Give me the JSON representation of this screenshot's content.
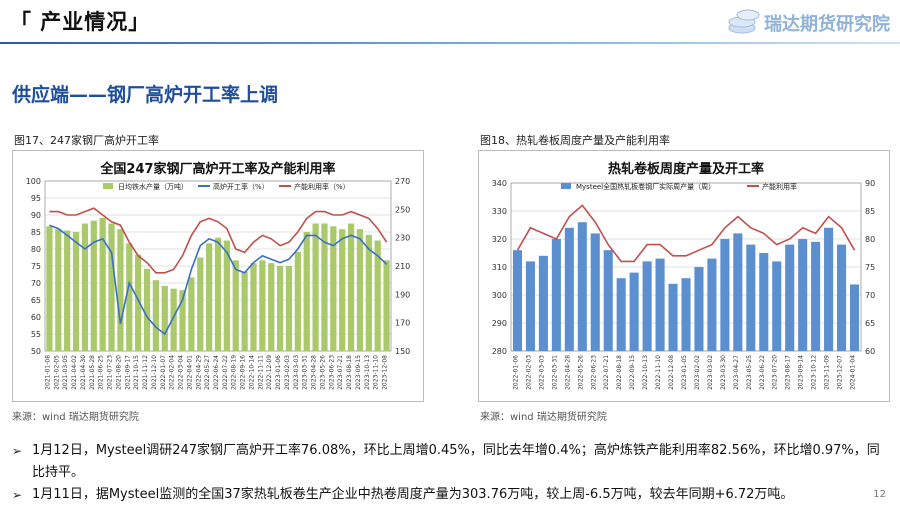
{
  "header": {
    "title": "「 产业情况」",
    "logo_text": "瑞达期货研究院"
  },
  "section": {
    "title": "供应端——钢厂高炉开工率上调"
  },
  "figures": {
    "fig17": {
      "caption": "图17、247家钢厂高炉开工率",
      "source": "来源：wind   瑞达期货研究院"
    },
    "fig18": {
      "caption": "图18、热轧卷板周度产量及产能利用率",
      "source": "来源：wind   瑞达期货研究院"
    }
  },
  "bullets": [
    {
      "text": "1月12日，Mysteel调研247家钢厂高炉开工率76.08%，环比上周增0.45%，同比去年增0.4%；高炉炼铁产能利用率82.56%，环比增0.97%，同比持平。"
    },
    {
      "text": "1月11日，据Mysteel监测的全国37家热轧板卷生产企业中热卷周度产量为303.76万吨，较上周-6.5万吨，较去年同期+6.72万吨。"
    }
  ],
  "page_number": "12",
  "colors": {
    "accent": "#1f4e9a",
    "bar_green": "#a9c96a",
    "bar_blue": "#5b8fd0",
    "line_blue": "#3a6fc4",
    "line_red": "#c0504d"
  },
  "chart_data": [
    {
      "type": "bar",
      "title": "全国247家钢厂高炉开工率及产能利用率",
      "legend": [
        "日均铁水产量（万吨）",
        "高炉开工率（%）",
        "产能利用率（%）"
      ],
      "legend_position": "top",
      "grid": true,
      "yleft": {
        "ticks": [
          50,
          55,
          60,
          65,
          70,
          75,
          80,
          85,
          90,
          95,
          100
        ],
        "range": [
          50,
          100
        ]
      },
      "yright": {
        "ticks": [
          150,
          170,
          190,
          210,
          230,
          250,
          270
        ],
        "range": [
          150,
          270
        ]
      },
      "x_tick_labels": [
        "2021-01-08",
        "2021-02-05",
        "2021-03-05",
        "2021-04-02",
        "2021-04-30",
        "2021-05-28",
        "2021-06-25",
        "2021-07-23",
        "2021-08-20",
        "2021-09-17",
        "2021-10-15",
        "2021-11-12",
        "2021-12-10",
        "2022-01-07",
        "2022-02-04",
        "2022-03-04",
        "2022-04-01",
        "2022-04-29",
        "2022-05-27",
        "2022-06-24",
        "2022-07-22",
        "2022-08-19",
        "2022-09-16",
        "2022-10-14",
        "2022-11-11",
        "2022-12-09",
        "2023-01-06",
        "2023-02-03",
        "2023-03-03",
        "2023-03-31",
        "2023-04-28",
        "2023-05-26",
        "2023-06-23",
        "2023-07-21",
        "2023-08-18",
        "2023-09-15",
        "2023-10-13",
        "2023-11-10",
        "2023-12-08"
      ],
      "series": [
        {
          "name": "日均铁水产量（万吨）",
          "axis": "right",
          "kind": "bar",
          "values": [
            238,
            236,
            235,
            234,
            240,
            242,
            244,
            240,
            236,
            226,
            218,
            208,
            200,
            196,
            194,
            193,
            202,
            216,
            226,
            230,
            228,
            214,
            206,
            212,
            214,
            212,
            210,
            210,
            220,
            234,
            240,
            240,
            238,
            236,
            240,
            236,
            232,
            228,
            214
          ]
        },
        {
          "name": "高炉开工率（%）",
          "axis": "left",
          "kind": "line",
          "values": [
            87,
            86,
            84,
            82,
            80,
            82,
            83,
            79,
            58,
            70,
            65,
            60,
            57,
            55,
            60,
            65,
            74,
            81,
            83,
            82,
            79,
            74,
            73,
            76,
            78,
            77,
            76,
            77,
            80,
            84,
            84,
            82,
            81,
            83,
            84,
            83,
            80,
            78,
            75.5
          ]
        },
        {
          "name": "产能利用率（%）",
          "axis": "left",
          "kind": "line",
          "values": [
            91,
            91,
            90,
            90,
            91,
            92,
            90,
            88,
            87,
            82,
            78,
            76,
            73,
            73,
            74,
            78,
            84,
            88,
            89,
            88,
            86,
            80,
            79,
            82,
            84,
            83,
            81,
            82,
            85,
            89,
            91,
            91,
            90,
            90,
            91,
            90,
            89,
            86,
            82
          ]
        }
      ]
    },
    {
      "type": "bar",
      "title": "热轧卷板周度产量及开工率",
      "legend": [
        "Mysteel全国热轧板卷钢厂实际周产量（周）",
        "产能利用率"
      ],
      "legend_position": "top",
      "grid": true,
      "yleft": {
        "ticks": [
          280,
          290,
          300,
          310,
          320,
          330,
          340
        ],
        "range": [
          280,
          340
        ]
      },
      "yright": {
        "ticks": [
          60,
          65,
          70,
          75,
          80,
          85,
          90
        ],
        "range": [
          60,
          90
        ]
      },
      "x_tick_labels": [
        "2022-01-06",
        "2022-02-03",
        "2022-03-03",
        "2022-03-31",
        "2022-04-28",
        "2022-05-26",
        "2022-06-23",
        "2022-07-21",
        "2022-08-18",
        "2022-09-15",
        "2022-10-13",
        "2022-11-10",
        "2022-12-08",
        "2023-01-05",
        "2023-02-02",
        "2023-03-02",
        "2023-03-30",
        "2023-04-27",
        "2023-05-25",
        "2023-06-22",
        "2023-07-20",
        "2023-08-17",
        "2023-09-14",
        "2023-10-12",
        "2023-11-09",
        "2023-12-07",
        "2024-01-04"
      ],
      "series": [
        {
          "name": "Mysteel全国热轧板卷钢厂实际周产量（周）",
          "axis": "left",
          "kind": "bar",
          "values": [
            316,
            312,
            314,
            320,
            324,
            326,
            322,
            316,
            306,
            308,
            312,
            313,
            304,
            306,
            310,
            313,
            320,
            322,
            318,
            315,
            312,
            318,
            320,
            319,
            324,
            318,
            303.76
          ]
        },
        {
          "name": "产能利用率",
          "axis": "right",
          "kind": "line",
          "values": [
            78,
            82,
            81,
            80,
            84,
            86,
            83,
            79,
            76,
            76,
            79,
            79,
            77,
            77,
            78,
            79,
            82,
            84,
            82,
            81,
            79,
            80,
            82,
            81,
            84,
            82,
            78
          ]
        }
      ]
    }
  ]
}
